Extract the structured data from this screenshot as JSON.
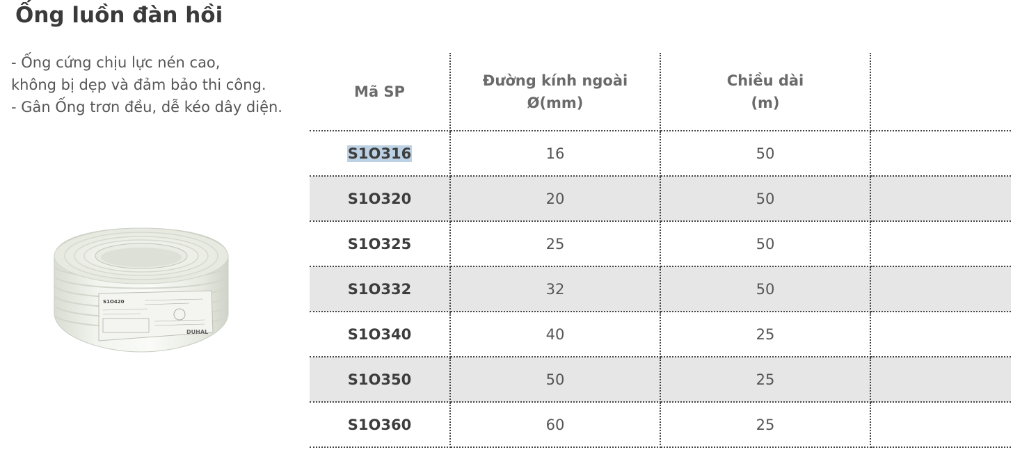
{
  "title": "Ống luồn đàn hồi",
  "description": [
    "- Ống cứng chịu lực nén cao,",
    "không bị dẹp và đảm bảo thi công.",
    "- Gân Ống trơn đều, dễ kéo dây diện."
  ],
  "product_image": {
    "label_code": "S1O420",
    "brand": "DUHAL"
  },
  "table": {
    "headers": {
      "code": "Mã SP",
      "diameter_line1": "Đường kính ngoài",
      "diameter_line2": "Ø(mm)",
      "length_line1": "Chiều dài",
      "length_line2": "(m)",
      "extra": ""
    },
    "rows": [
      {
        "code": "S1O316",
        "diameter": "16",
        "length": "50"
      },
      {
        "code": "S1O320",
        "diameter": "20",
        "length": "50"
      },
      {
        "code": "S1O325",
        "diameter": "25",
        "length": "50"
      },
      {
        "code": "S1O332",
        "diameter": "32",
        "length": "50"
      },
      {
        "code": "S1O340",
        "diameter": "40",
        "length": "25"
      },
      {
        "code": "S1O350",
        "diameter": "50",
        "length": "25"
      },
      {
        "code": "S1O360",
        "diameter": "60",
        "length": "25"
      }
    ]
  }
}
